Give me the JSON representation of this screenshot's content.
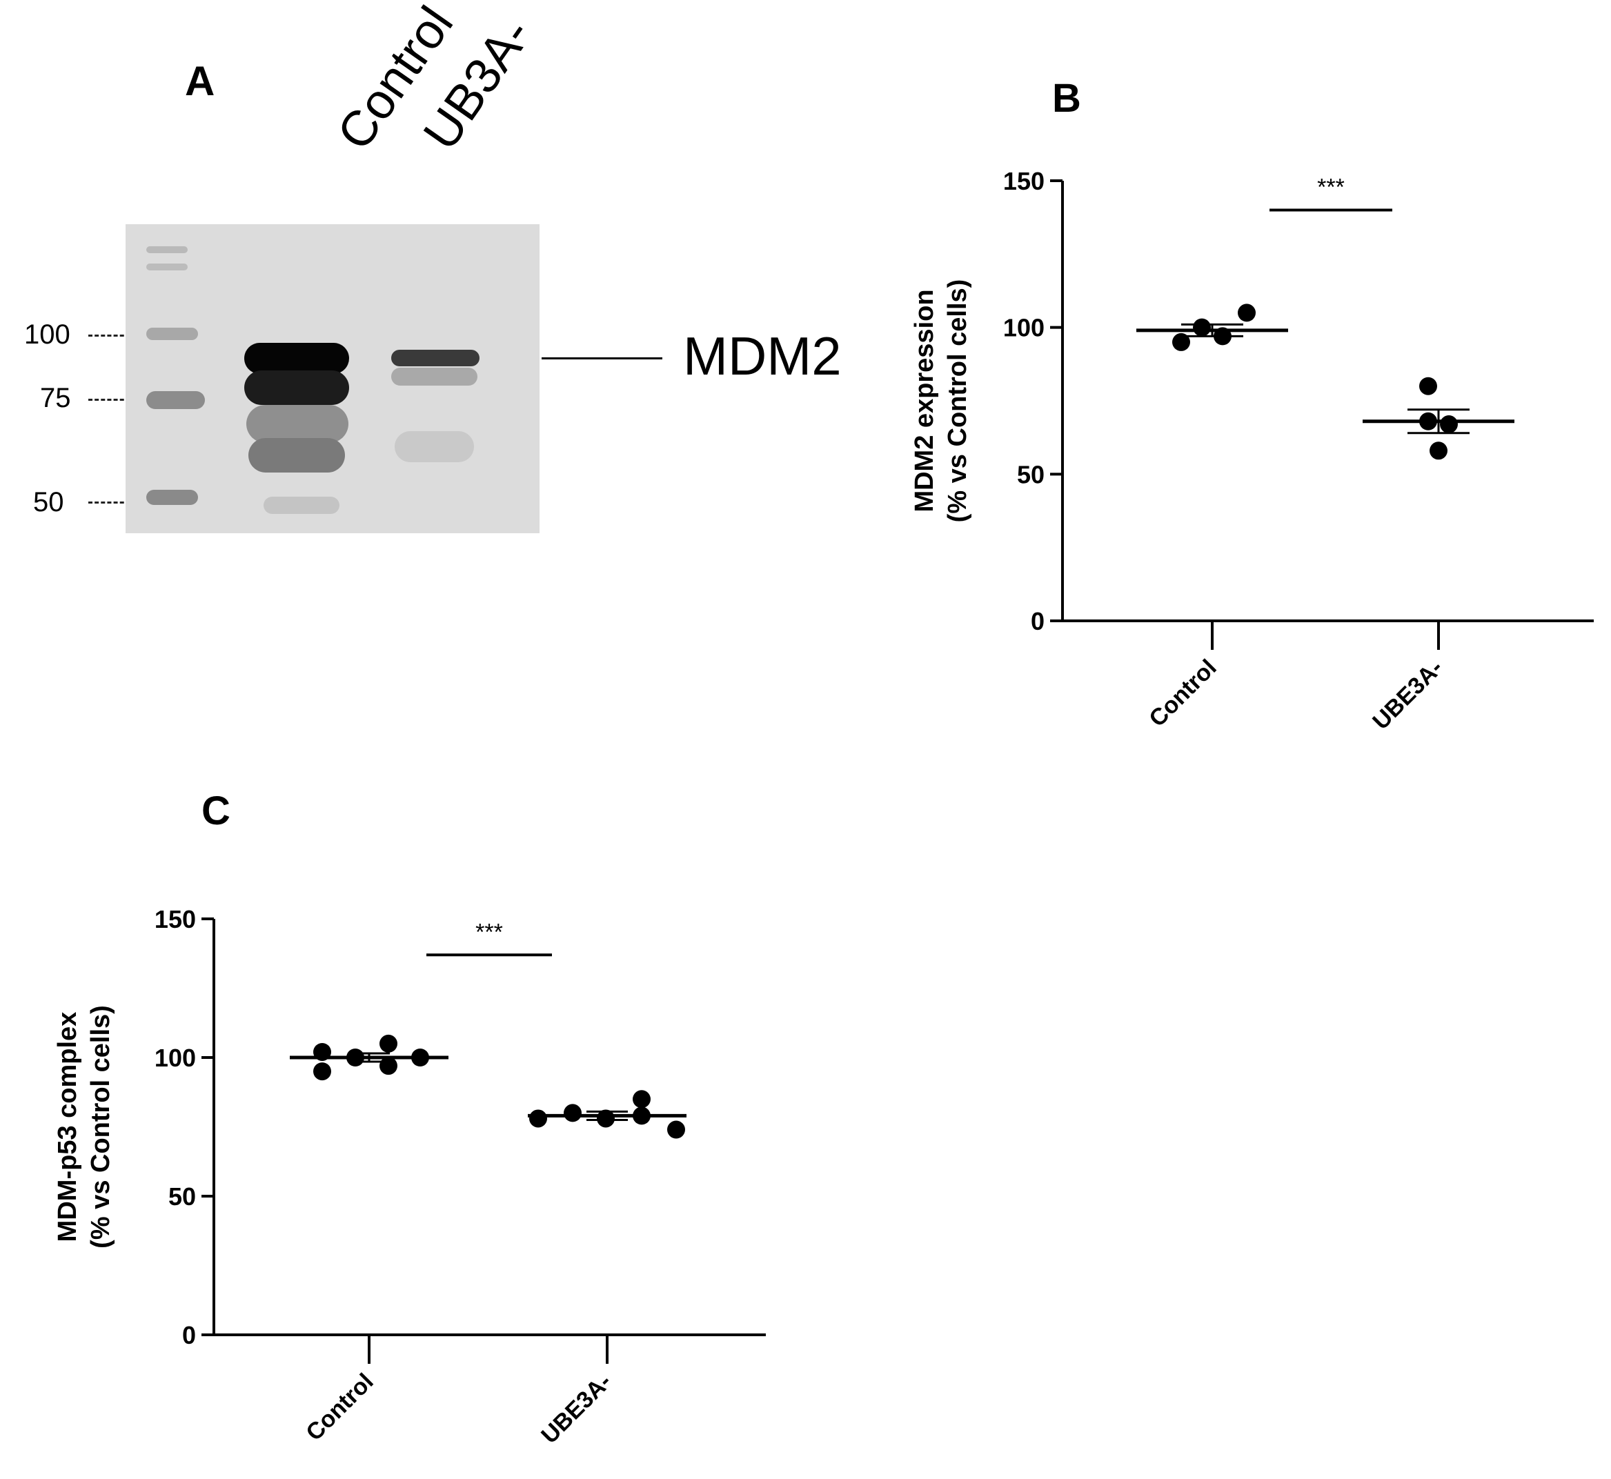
{
  "panel_a": {
    "letter": "A",
    "lanes": [
      "Control",
      "UB3A-"
    ],
    "markers": [
      "100",
      "75",
      "50"
    ],
    "band_label": "MDM2"
  },
  "chart_data": [
    {
      "panel": "B",
      "type": "scatter",
      "ylabel_line1": "MDM2 expression",
      "ylabel_line2": "(% vs Control cells)",
      "xlabel": "",
      "categories": [
        "Control",
        "UBE3A-"
      ],
      "ylim": [
        0,
        150
      ],
      "yticks": [
        0,
        50,
        100,
        150
      ],
      "series": [
        {
          "category": "Control",
          "points": [
            95,
            100,
            97,
            105
          ],
          "mean": 99,
          "sem": 2
        },
        {
          "category": "UBE3A-",
          "points": [
            80,
            68,
            67,
            58
          ],
          "mean": 68,
          "sem": 4
        }
      ],
      "significance": "***",
      "significance_y": 140
    },
    {
      "panel": "C",
      "type": "scatter",
      "ylabel_line1": "MDM-p53 complex",
      "ylabel_line2": "(%  vs Control cells)",
      "xlabel": "",
      "categories": [
        "Control",
        "UBE3A-"
      ],
      "ylim": [
        0,
        150
      ],
      "yticks": [
        0,
        50,
        100,
        150
      ],
      "series": [
        {
          "category": "Control",
          "points": [
            102,
            95,
            100,
            105,
            97,
            100
          ],
          "mean": 100,
          "sem": 1.5
        },
        {
          "category": "UBE3A-",
          "points": [
            78,
            80,
            78,
            85,
            79,
            74
          ],
          "mean": 79,
          "sem": 1.5
        }
      ],
      "significance": "***",
      "significance_y": 137
    }
  ]
}
